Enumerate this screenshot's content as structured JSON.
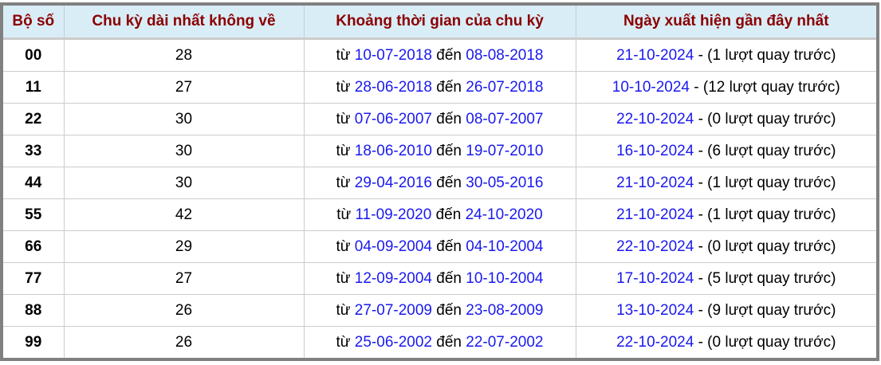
{
  "headers": [
    "Bộ số",
    "Chu kỳ dài nhất không về",
    "Khoảng thời gian của chu kỳ",
    "Ngày xuất hiện gần đây nhất"
  ],
  "labels": {
    "from": "từ",
    "to": "đến"
  },
  "colors": {
    "header_bg": "#d9edf7",
    "header_text": "#8b0000",
    "date_link": "#1a1aee",
    "frame": "#808080"
  },
  "rows": [
    {
      "number": "00",
      "cycle": "28",
      "start": "10-07-2018",
      "end": "08-08-2018",
      "last_date": "21-10-2024",
      "last_note": "- (1 lượt quay trước)"
    },
    {
      "number": "11",
      "cycle": "27",
      "start": "28-06-2018",
      "end": "26-07-2018",
      "last_date": "10-10-2024",
      "last_note": "- (12 lượt quay trước)"
    },
    {
      "number": "22",
      "cycle": "30",
      "start": "07-06-2007",
      "end": "08-07-2007",
      "last_date": "22-10-2024",
      "last_note": "- (0 lượt quay trước)"
    },
    {
      "number": "33",
      "cycle": "30",
      "start": "18-06-2010",
      "end": "19-07-2010",
      "last_date": "16-10-2024",
      "last_note": "- (6 lượt quay trước)"
    },
    {
      "number": "44",
      "cycle": "30",
      "start": "29-04-2016",
      "end": "30-05-2016",
      "last_date": "21-10-2024",
      "last_note": "- (1 lượt quay trước)"
    },
    {
      "number": "55",
      "cycle": "42",
      "start": "11-09-2020",
      "end": "24-10-2020",
      "last_date": "21-10-2024",
      "last_note": "- (1 lượt quay trước)"
    },
    {
      "number": "66",
      "cycle": "29",
      "start": "04-09-2004",
      "end": "04-10-2004",
      "last_date": "22-10-2024",
      "last_note": "- (0 lượt quay trước)"
    },
    {
      "number": "77",
      "cycle": "27",
      "start": "12-09-2004",
      "end": "10-10-2004",
      "last_date": "17-10-2024",
      "last_note": "- (5 lượt quay trước)"
    },
    {
      "number": "88",
      "cycle": "26",
      "start": "27-07-2009",
      "end": "23-08-2009",
      "last_date": "13-10-2024",
      "last_note": "- (9 lượt quay trước)"
    },
    {
      "number": "99",
      "cycle": "26",
      "start": "25-06-2002",
      "end": "22-07-2002",
      "last_date": "22-10-2024",
      "last_note": "- (0 lượt quay trước)"
    }
  ]
}
